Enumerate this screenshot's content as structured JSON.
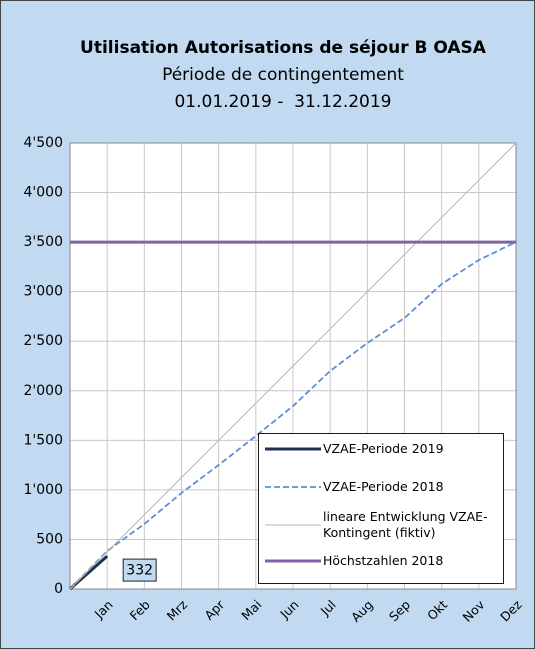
{
  "chart_data": {
    "type": "line",
    "title": "Utilisation Autorisations de séjour B OASA",
    "subtitle": "Période de contingentement",
    "period": "01.01.2019 -  31.12.2019",
    "categories": [
      null,
      "Jan",
      "Feb",
      "Mrz",
      "Apr",
      "Mai",
      "Jun",
      "Jul",
      "Aug",
      "Sep",
      "Okt",
      "Nov",
      "Dez"
    ],
    "series": [
      {
        "name": "VZAE-Periode 2019",
        "color": "#1f3050",
        "width": 3,
        "dash": false,
        "values": [
          0,
          332,
          null,
          null,
          null,
          null,
          null,
          null,
          null,
          null,
          null,
          null,
          null
        ]
      },
      {
        "name": "VZAE-Periode 2018",
        "color": "#5b8fd6",
        "width": 1.8,
        "dash": true,
        "values": [
          0,
          383,
          656,
          969,
          1251,
          1544,
          1846,
          2200,
          2482,
          2734,
          3077,
          3319,
          3501
        ]
      },
      {
        "name": "lineare Entwicklung VZAE-Kontingent (fiktiv)",
        "color": "#b4b4b4",
        "width": 1,
        "dash": false,
        "values": [
          0,
          375,
          750,
          1125,
          1500,
          1875,
          2250,
          2625,
          3000,
          3375,
          3750,
          4125,
          4500
        ]
      },
      {
        "name": "Höchstzahlen 2018",
        "color": "#8064a2",
        "width": 3,
        "dash": false,
        "values": [
          3500,
          3500,
          3500,
          3500,
          3500,
          3500,
          3500,
          3500,
          3500,
          3500,
          3500,
          3500,
          3500
        ]
      }
    ],
    "ylim": [
      0,
      4500
    ],
    "yticks": [
      0,
      500,
      {
        "value": 1000,
        "label": "1'000"
      },
      {
        "value": 1500,
        "label": "1'500"
      },
      {
        "value": 2000,
        "label": "2'000"
      },
      {
        "value": 2500,
        "label": "2'500"
      },
      {
        "value": 3000,
        "label": "3'000"
      },
      {
        "value": 3500,
        "label": "3'500"
      },
      {
        "value": 4000,
        "label": "4'000"
      },
      {
        "value": 4500,
        "label": "4'500"
      }
    ],
    "grid": true,
    "legend": "lower right"
  }
}
